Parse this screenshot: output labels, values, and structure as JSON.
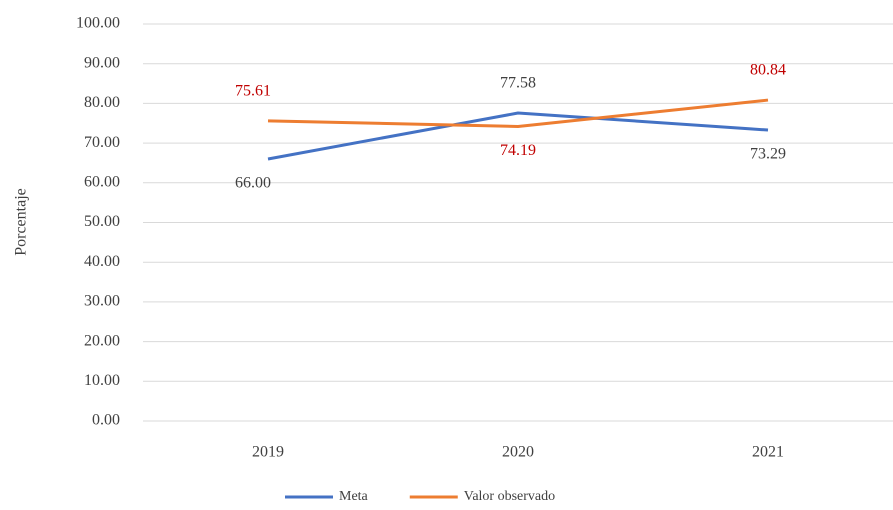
{
  "chart_data": {
    "type": "line",
    "y_label": "Porcentaje",
    "categories": [
      "2019",
      "2020",
      "2021"
    ],
    "series": [
      {
        "name": "Meta",
        "color": "#4472c4",
        "label_color": "#404040",
        "values": [
          66.0,
          77.58,
          73.29
        ],
        "value_labels": [
          "66.00",
          "77.58",
          "73.29"
        ]
      },
      {
        "name": "Valor observado",
        "color": "#ed7d31",
        "label_color": "#c00000",
        "values": [
          75.61,
          74.19,
          80.84
        ]
      }
    ],
    "ylim": [
      0,
      100
    ],
    "yticks": [
      {
        "value": 0,
        "label": "0.00"
      },
      {
        "value": 10,
        "label": "10.00"
      },
      {
        "value": 20,
        "label": "20.00"
      },
      {
        "value": 30,
        "label": "30.00"
      },
      {
        "value": 40,
        "label": "40.00"
      },
      {
        "value": 50,
        "label": "50.00"
      },
      {
        "value": 60,
        "label": "60.00"
      },
      {
        "value": 70,
        "label": "70.00"
      },
      {
        "value": 80,
        "label": "80.00"
      },
      {
        "value": 90,
        "label": "90.00"
      },
      {
        "value": 100,
        "label": "100.00"
      }
    ],
    "grid": true,
    "legend": "bottom"
  }
}
